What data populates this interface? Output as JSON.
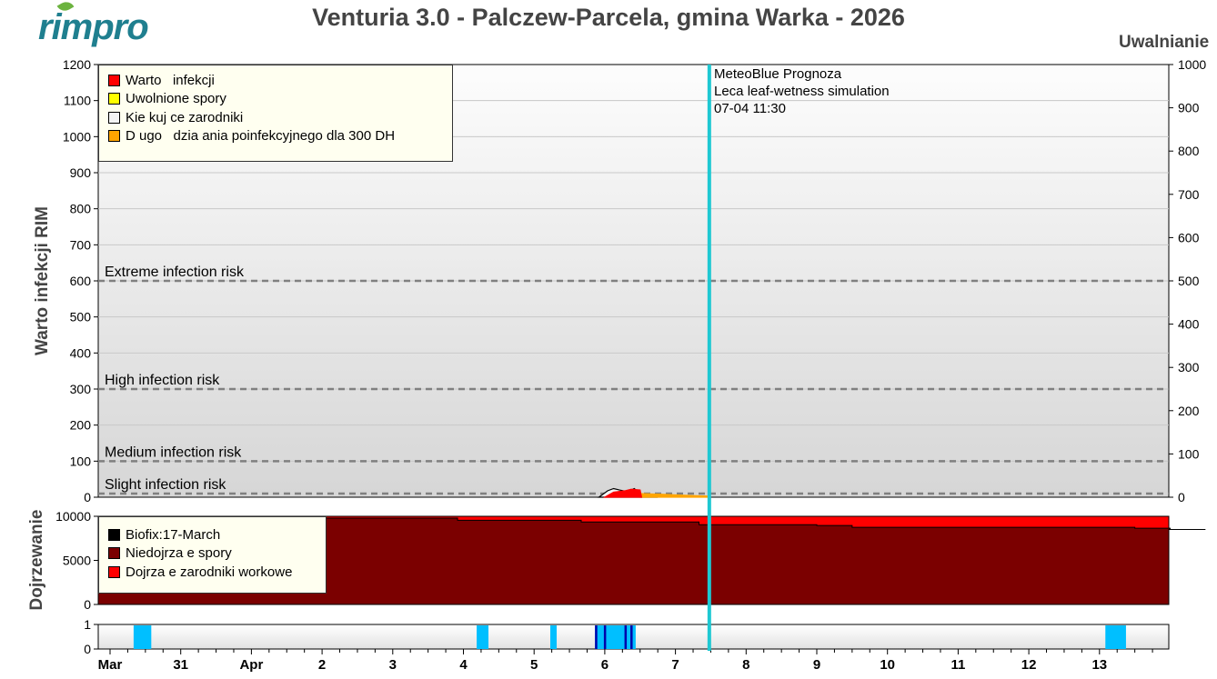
{
  "header": {
    "logo": "rimpro",
    "title": "Venturia 3.0 - Palczew-Parcela, gmina Warka - 2026"
  },
  "forecast_note": {
    "lines": [
      "MeteoBlue Prognoza",
      "Leca leaf-wetness simulation",
      "07-04 11:30"
    ],
    "line_color": "#1ec8d2",
    "at": "04-07 11:30"
  },
  "chart_data": [
    {
      "type": "area",
      "ylabel": "Warto   infekcji RIM",
      "ylabel_right": "Uwalnianie",
      "ylim": [
        0,
        1200
      ],
      "ylim_right": [
        0,
        1000
      ],
      "yticks": [
        0,
        100,
        200,
        300,
        400,
        500,
        600,
        700,
        800,
        900,
        1000,
        1100,
        1200
      ],
      "yticks_right": [
        0,
        100,
        200,
        300,
        400,
        500,
        600,
        700,
        800,
        900,
        1000
      ],
      "grid": true,
      "legend_position": "top-left",
      "risk_lines": [
        {
          "label": "Extreme infection risk",
          "value": 600
        },
        {
          "label": "High infection risk",
          "value": 300
        },
        {
          "label": "Medium infection risk",
          "value": 100
        },
        {
          "label": "Slight infection risk",
          "value": 10
        }
      ],
      "series": [
        {
          "name": "Warto   infekcji",
          "color": "#ff0000",
          "points": [
            [
              "04-06 00:00",
              0
            ],
            [
              "04-06 03:00",
              14
            ],
            [
              "04-06 07:00",
              18
            ],
            [
              "04-06 09:00",
              22
            ],
            [
              "04-06 12:00",
              20
            ],
            [
              "04-06 12:30",
              0
            ]
          ]
        },
        {
          "name": "Uwolnione spory",
          "color": "#ffff00",
          "points": []
        },
        {
          "name": "Kie kuj ce zarodniki",
          "color": "#f4f4f4",
          "points": [
            [
              "04-05 22:00",
              0
            ],
            [
              "04-06 01:00",
              18
            ],
            [
              "04-06 03:00",
              24
            ],
            [
              "04-06 05:00",
              20
            ],
            [
              "04-06 08:00",
              15
            ],
            [
              "04-06 10:00",
              24
            ],
            [
              "04-06 12:00",
              10
            ],
            [
              "04-06 16:00",
              4
            ],
            [
              "04-06 18:00",
              0
            ]
          ]
        },
        {
          "name": "D ugo   dzia ania poinfekcyjnego dla 300 DH",
          "color": "#ffa500",
          "points": [
            [
              "04-06 12:00",
              0
            ],
            [
              "04-06 12:00",
              10
            ],
            [
              "04-06 20:00",
              8
            ],
            [
              "04-07 04:00",
              5
            ],
            [
              "04-07 11:30",
              3
            ],
            [
              "04-07 11:30",
              0
            ]
          ]
        }
      ]
    },
    {
      "type": "area",
      "ylabel": "Dojrzewanie",
      "ylim": [
        0,
        10000
      ],
      "yticks": [
        0,
        5000,
        10000
      ],
      "legend_position": "top-left",
      "series": [
        {
          "name": "Biofix:17-March",
          "color": "#000000"
        },
        {
          "name": "Niedojrza e spory",
          "color": "#7b0000",
          "points": [
            [
              "03-30 00:00",
              9800
            ],
            [
              "04-02 00:00",
              9800
            ],
            [
              "04-03 22:00",
              9550
            ],
            [
              "04-05 16:00",
              9350
            ],
            [
              "04-07 08:00",
              9050
            ],
            [
              "04-09 00:00",
              8950
            ],
            [
              "04-09 12:00",
              8750
            ],
            [
              "04-13 12:00",
              8650
            ],
            [
              "04-14 00:00",
              8500
            ],
            [
              "04-14 12:00",
              8500
            ]
          ]
        },
        {
          "name": "Dojrza e zarodniki workowe",
          "color": "#ff0000",
          "total": 10000
        }
      ]
    },
    {
      "type": "bar",
      "ylim": [
        0,
        1
      ],
      "yticks": [
        0,
        1
      ],
      "wet_color": "#00bfff",
      "rain_color": "#0000aa",
      "wet_periods": [
        [
          "03-30 08:00",
          "03-30 14:00"
        ],
        [
          "04-04 04:30",
          "04-04 08:30"
        ],
        [
          "04-05 05:30",
          "04-05 07:40"
        ],
        [
          "04-05 20:40",
          "04-06 10:30"
        ],
        [
          "04-13 02:00",
          "04-13 09:00"
        ]
      ],
      "rain_marks": [
        "04-05 21:00",
        "04-06 00:00",
        "04-06 07:00",
        "04-06 09:00"
      ]
    }
  ],
  "x_axis": {
    "start": "03-30 00:00",
    "end": "04-14 12:00",
    "ticks": [
      {
        "label": "Mar",
        "at": "03-30 00:00"
      },
      {
        "label": "31",
        "at": "03-31 00:00"
      },
      {
        "label": "Apr",
        "at": "04-01 00:00"
      },
      {
        "label": "2",
        "at": "04-02 00:00"
      },
      {
        "label": "3",
        "at": "04-03 00:00"
      },
      {
        "label": "4",
        "at": "04-04 00:00"
      },
      {
        "label": "5",
        "at": "04-05 00:00"
      },
      {
        "label": "6",
        "at": "04-06 00:00"
      },
      {
        "label": "7",
        "at": "04-07 00:00"
      },
      {
        "label": "8",
        "at": "04-08 00:00"
      },
      {
        "label": "9",
        "at": "04-09 00:00"
      },
      {
        "label": "10",
        "at": "04-10 00:00"
      },
      {
        "label": "11",
        "at": "04-11 00:00"
      },
      {
        "label": "12",
        "at": "04-12 00:00"
      },
      {
        "label": "13",
        "at": "04-13 00:00"
      }
    ]
  }
}
